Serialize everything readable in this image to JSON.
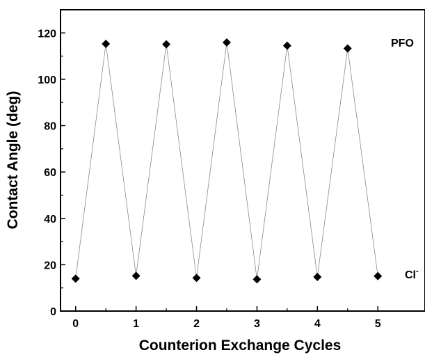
{
  "chart_data": {
    "type": "line",
    "title": "",
    "xlabel": "Counterion Exchange Cycles",
    "ylabel": "Contact Angle (deg)",
    "xlim": [
      -0.25,
      5.78
    ],
    "ylim": [
      0,
      130
    ],
    "xticks": [
      0,
      1,
      2,
      3,
      4,
      5
    ],
    "yticks": [
      0,
      20,
      40,
      60,
      80,
      100,
      120
    ],
    "xtick_labels": [
      "0",
      "1",
      "2",
      "3",
      "4",
      "5"
    ],
    "ytick_labels": [
      "0",
      "20",
      "40",
      "60",
      "80",
      "100",
      "120"
    ],
    "grid": false,
    "legend": "none",
    "marker": "diamond",
    "series": [
      {
        "x": [
          0,
          0.5,
          1,
          1.5,
          2,
          2.5,
          3,
          3.5,
          4,
          4.5,
          5
        ],
        "values": [
          14,
          115.3,
          15.2,
          115.1,
          14.3,
          115.9,
          13.7,
          114.5,
          14.7,
          113.3,
          15.1
        ]
      }
    ],
    "annotations": [
      {
        "text": "PFO",
        "anchor_y": 116
      },
      {
        "text": "Cl",
        "superscript": "-",
        "anchor_y": 16
      }
    ],
    "colors": {
      "marker": "#000000",
      "line": "#888888",
      "axis": "#000000"
    }
  }
}
